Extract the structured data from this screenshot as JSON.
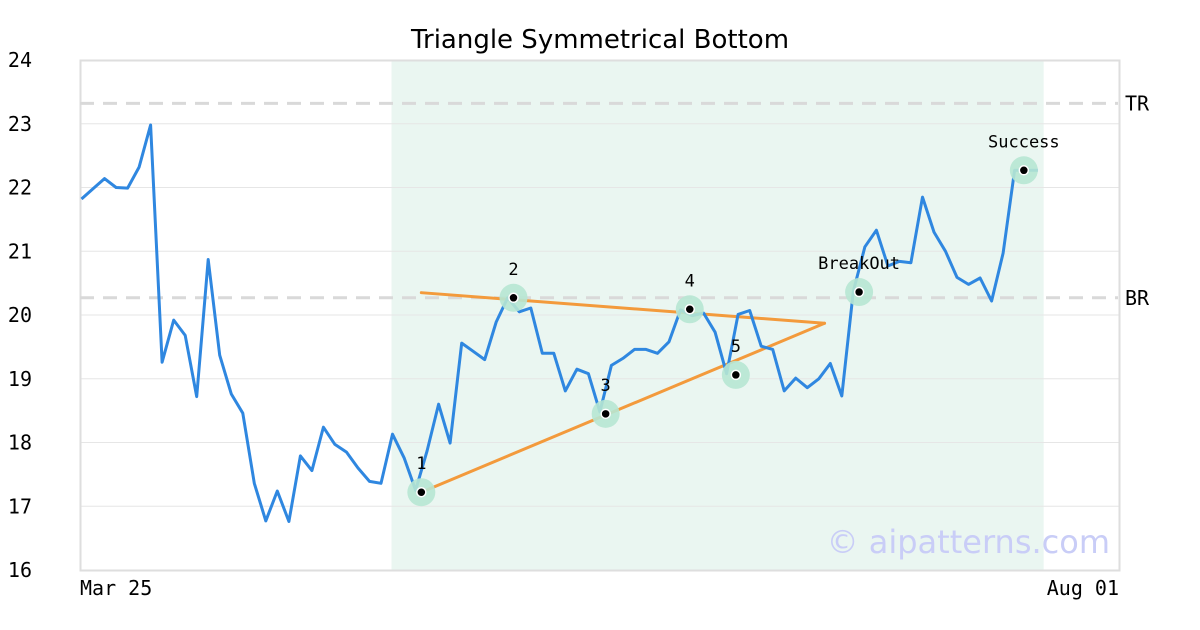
{
  "chart_data": {
    "type": "line",
    "title": "Triangle Symmetrical Bottom",
    "ylim": [
      16,
      24
    ],
    "yticks": [
      16,
      17,
      18,
      19,
      20,
      21,
      22,
      23,
      24
    ],
    "xtick_labels": [
      "Mar 25",
      "Aug 01"
    ],
    "grid": "horizontal",
    "watermark": "© aipatterns.com",
    "colors": {
      "line": "#2f87e0",
      "pattern": "#f39a3c",
      "highlight": "#eaf6f1",
      "marker_halo": "#b7e7d3",
      "level": "#d9d9d9"
    },
    "series": [
      {
        "values": [
          21.82,
          21.98,
          22.14,
          22.0,
          21.99,
          22.32,
          22.98,
          19.26,
          19.92,
          19.68,
          18.72,
          20.87,
          19.37,
          18.76,
          18.46,
          17.36,
          16.77,
          17.24,
          16.76,
          17.79,
          17.56,
          18.24,
          17.97,
          17.85,
          17.6,
          17.39,
          17.36,
          18.13,
          17.76,
          17.25,
          17.87,
          18.6,
          17.99,
          19.56,
          19.43,
          19.3,
          19.89,
          20.27,
          20.05,
          20.11,
          19.4,
          19.4,
          18.81,
          19.15,
          19.08,
          18.48,
          19.21,
          19.32,
          19.46,
          19.46,
          19.4,
          19.58,
          20.08,
          19.99,
          20.03,
          19.73,
          19.08,
          20.01,
          20.07,
          19.51,
          19.46,
          18.81,
          19.01,
          18.86,
          19.0,
          19.24,
          18.73,
          20.37,
          21.07,
          21.33,
          20.77,
          20.84,
          20.82,
          21.85,
          21.3,
          21.0,
          20.59,
          20.48,
          20.58,
          20.22,
          20.97,
          22.27,
          22.27,
          22.27
        ]
      }
    ],
    "highlight_range": {
      "from_index": 27,
      "to_index": 83
    },
    "levels": [
      {
        "label": "TR",
        "value": 23.32
      },
      {
        "label": "BR",
        "value": 20.27
      }
    ],
    "trendlines": [
      {
        "from": {
          "index": 29.5,
          "value": 20.35
        },
        "to": {
          "index": 64.5,
          "value": 19.87
        }
      },
      {
        "from": {
          "index": 29.5,
          "value": 17.22
        },
        "to": {
          "index": 64.5,
          "value": 19.87
        }
      }
    ],
    "points": [
      {
        "label": "1",
        "index": 29.5,
        "value": 17.22
      },
      {
        "label": "2",
        "index": 37.5,
        "value": 20.27
      },
      {
        "label": "3",
        "index": 45.5,
        "value": 18.45
      },
      {
        "label": "4",
        "index": 52.8,
        "value": 20.09
      },
      {
        "label": "5",
        "index": 56.8,
        "value": 19.06
      },
      {
        "label": "BreakOut",
        "index": 67.5,
        "value": 20.36
      },
      {
        "label": "Success",
        "index": 81.8,
        "value": 22.27
      }
    ]
  }
}
